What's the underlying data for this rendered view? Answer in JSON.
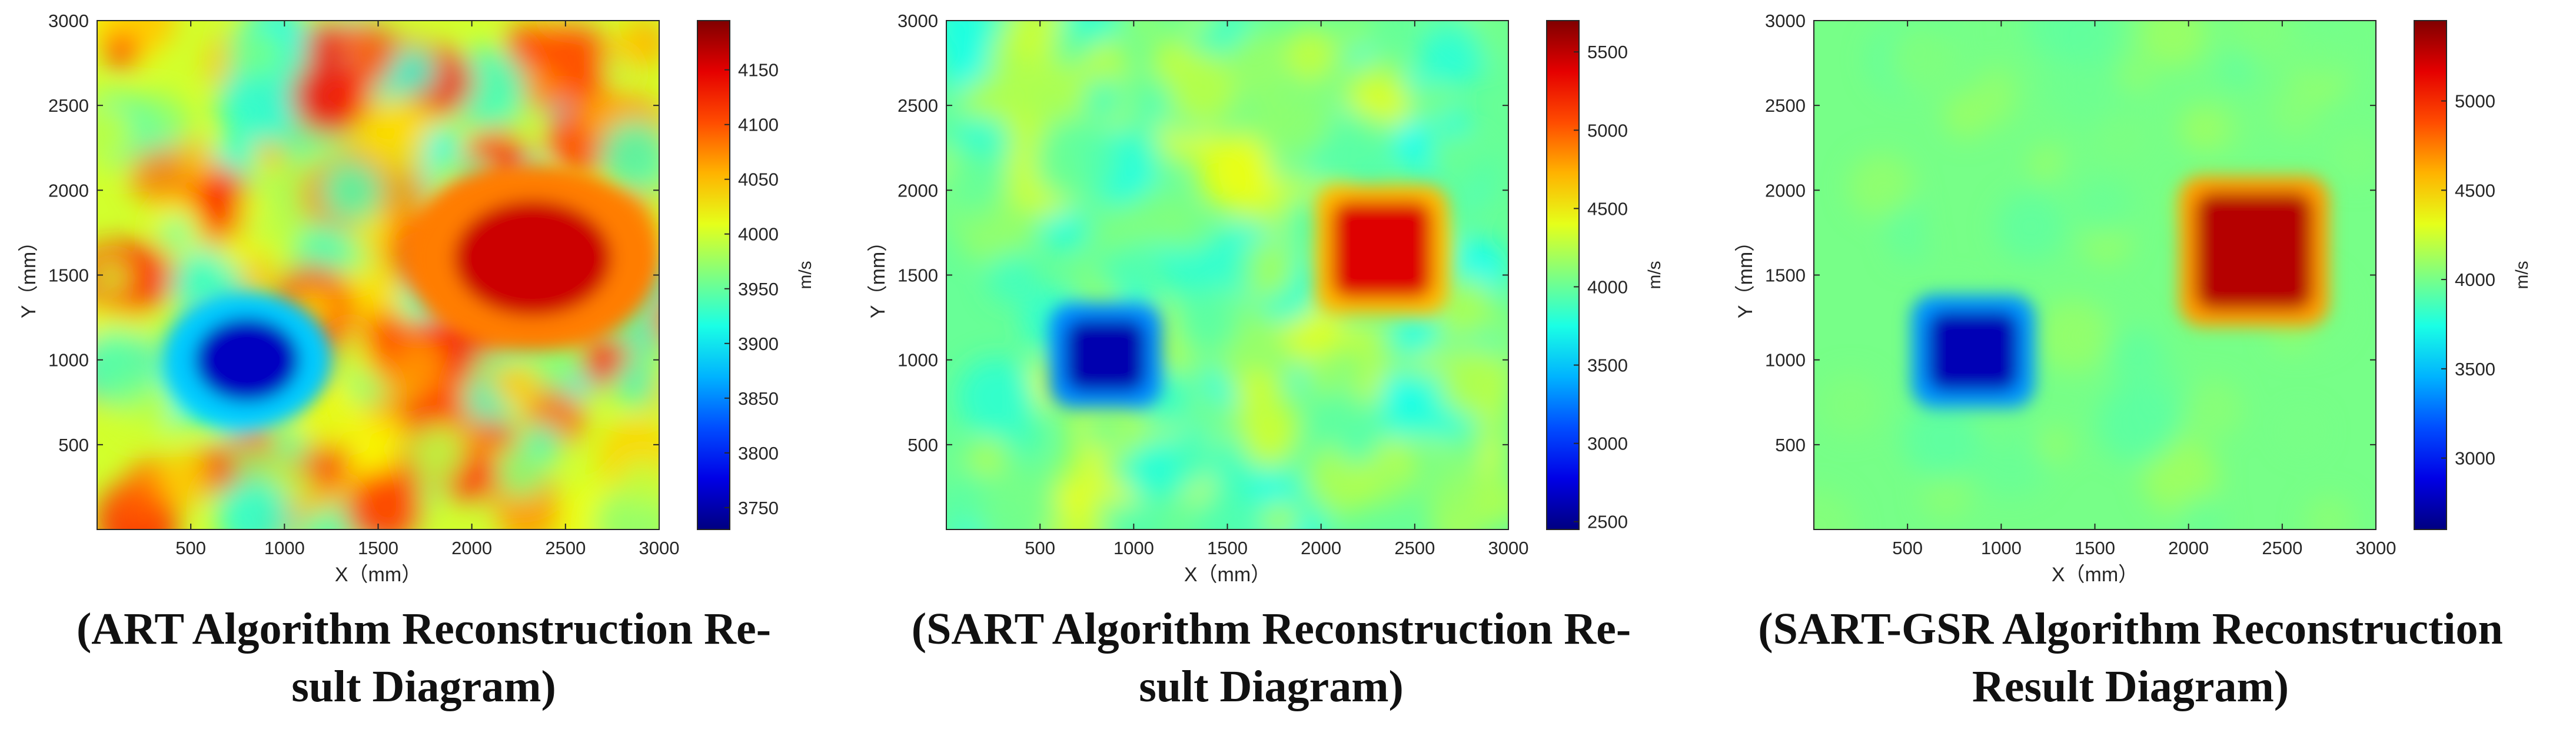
{
  "chart_data": [
    {
      "type": "heatmap",
      "title": "",
      "xlabel": "X（mm）",
      "ylabel": "Y（mm）",
      "xlim": [
        0,
        3000
      ],
      "ylim": [
        0,
        3000
      ],
      "xticks": [
        500,
        1000,
        1500,
        2000,
        2500,
        3000
      ],
      "yticks": [
        500,
        1000,
        1500,
        2000,
        2500,
        3000
      ],
      "colorbar": {
        "label": "m/s",
        "range": [
          3730,
          4195
        ],
        "ticks": [
          3750,
          3800,
          3850,
          3900,
          3950,
          4000,
          4050,
          4100,
          4150
        ]
      },
      "background_value": 4000,
      "regions": [
        {
          "shape": "blob",
          "x": [
            350,
            1250
          ],
          "y": [
            600,
            1400
          ],
          "value": 3760
        },
        {
          "shape": "blob",
          "x": [
            1650,
            3000
          ],
          "y": [
            1050,
            2150
          ],
          "value": 4160
        }
      ],
      "caption": [
        "(ART Algorithm Reconstruction Re-",
        "sult Diagram)"
      ]
    },
    {
      "type": "heatmap",
      "title": "",
      "xlabel": "X（mm）",
      "ylabel": "Y（mm）",
      "xlim": [
        0,
        3000
      ],
      "ylim": [
        0,
        3000
      ],
      "xticks": [
        500,
        1000,
        1500,
        2000,
        2500,
        3000
      ],
      "yticks": [
        500,
        1000,
        1500,
        2000,
        2500,
        3000
      ],
      "colorbar": {
        "label": "m/s",
        "range": [
          2450,
          5700
        ],
        "ticks": [
          2500,
          3000,
          3500,
          4000,
          4500,
          5000,
          5500
        ]
      },
      "background_value": 4000,
      "regions": [
        {
          "shape": "square",
          "x": [
            580,
            1120
          ],
          "y": [
            750,
            1300
          ],
          "value": 2600
        },
        {
          "shape": "square",
          "x": [
            2000,
            2650
          ],
          "y": [
            1300,
            2000
          ],
          "value": 5400
        }
      ],
      "caption": [
        "(SART Algorithm Reconstruction Re-",
        "sult Diagram)"
      ]
    },
    {
      "type": "heatmap",
      "title": "",
      "xlabel": "X（mm）",
      "ylabel": "Y（mm）",
      "xlim": [
        0,
        3000
      ],
      "ylim": [
        0,
        3000
      ],
      "xticks": [
        500,
        1000,
        1500,
        2000,
        2500,
        3000
      ],
      "yticks": [
        500,
        1000,
        1500,
        2000,
        2500,
        3000
      ],
      "colorbar": {
        "label": "m/s",
        "range": [
          2600,
          5450
        ],
        "ticks": [
          3000,
          3500,
          4000,
          4500,
          5000
        ]
      },
      "background_value": 4000,
      "regions": [
        {
          "shape": "square",
          "x": [
            550,
            1150
          ],
          "y": [
            750,
            1350
          ],
          "value": 2750
        },
        {
          "shape": "square",
          "x": [
            1980,
            2720
          ],
          "y": [
            1230,
            2050
          ],
          "value": 5300
        }
      ],
      "caption": [
        "(SART-GSR Algorithm Reconstruction",
        "Result Diagram)"
      ]
    }
  ]
}
